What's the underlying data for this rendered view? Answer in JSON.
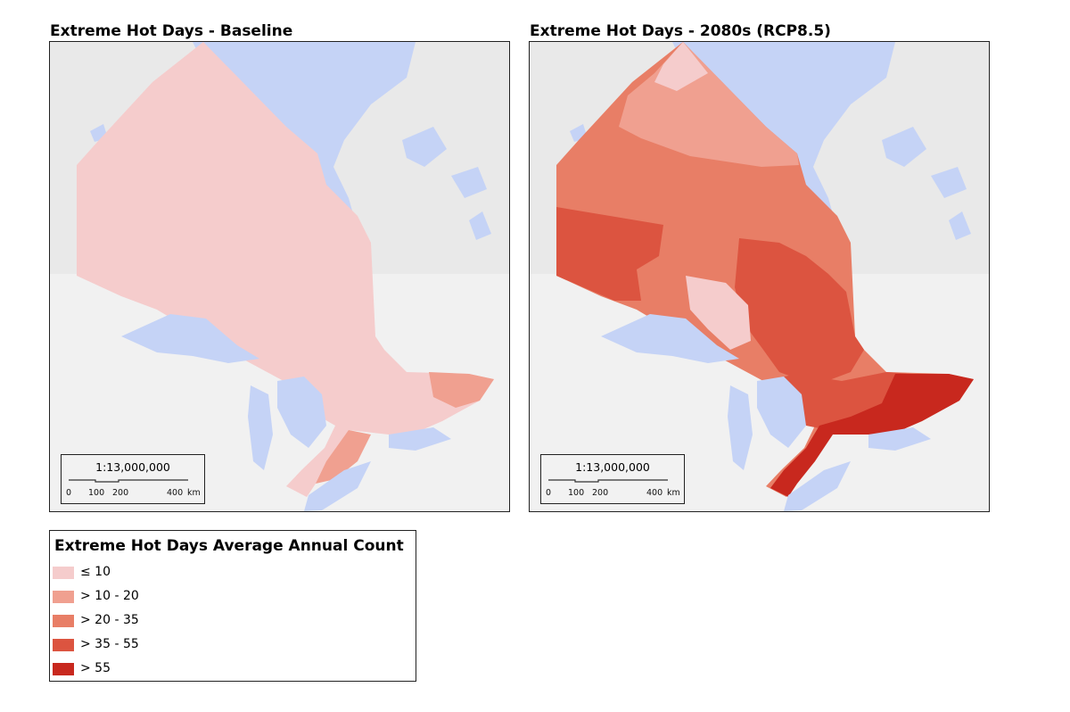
{
  "maps": [
    {
      "title": "Extreme Hot Days - Baseline",
      "scale": {
        "ratio": "1:13,000,000",
        "ticks": [
          "0",
          "100",
          "200",
          "400",
          "km"
        ]
      }
    },
    {
      "title": "Extreme Hot Days - 2080s (RCP8.5)",
      "scale": {
        "ratio": "1:13,000,000",
        "ticks": [
          "0",
          "100",
          "200",
          "400",
          "km"
        ]
      }
    }
  ],
  "legend": {
    "title": "Extreme Hot Days Average Annual Count",
    "items": [
      {
        "label": "≤ 10",
        "color": "#f5cccc"
      },
      {
        "label": "> 10 - 20",
        "color": "#f0a090"
      },
      {
        "label": "> 20 - 35",
        "color": "#e87e66"
      },
      {
        "label": "> 35 - 55",
        "color": "#dc5440"
      },
      {
        "label": "> 55",
        "color": "#c8281e"
      }
    ]
  },
  "colors": {
    "water": "#c5d3f6",
    "land": "#e9e9e9",
    "land_us": "#f1f1f1"
  }
}
